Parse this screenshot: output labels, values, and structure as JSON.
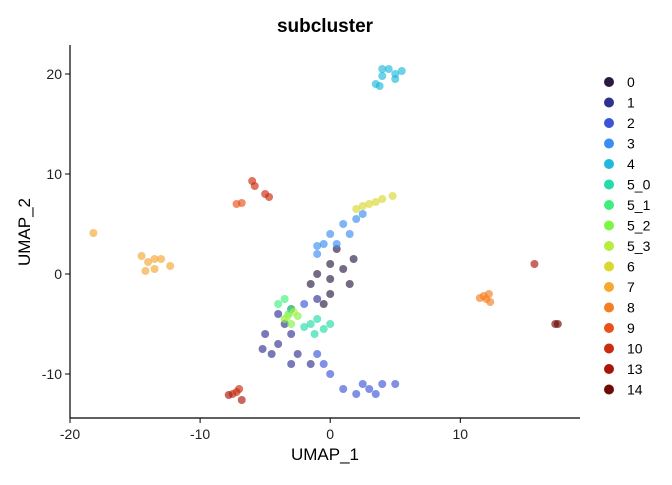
{
  "chart_data": {
    "type": "scatter",
    "title": "subcluster",
    "x_label": "UMAP_1",
    "y_label": "UMAP_2",
    "xlim": [
      -20,
      19.2
    ],
    "ylim": [
      -14.4,
      22.9
    ],
    "xticks": [
      -20,
      -10,
      0,
      10
    ],
    "yticks": [
      -10,
      0,
      10,
      20
    ],
    "grid": false,
    "legend": "right",
    "series": [
      {
        "name": "0",
        "color": "#2b1a40",
        "x": [
          -1,
          0,
          1,
          1.5,
          0,
          -1.5,
          0.5,
          -0.5,
          1.8,
          0
        ],
        "y": [
          0,
          1,
          0.5,
          -1,
          -2,
          -1,
          2.5,
          -3,
          1.5,
          -0.5
        ]
      },
      {
        "name": "1",
        "color": "#30318f",
        "x": [
          -5,
          -4,
          -3,
          -4.5,
          -3.5,
          -2.5,
          -4,
          -1.5,
          -5.2,
          -3,
          -1,
          -3
        ],
        "y": [
          -6,
          -7,
          -6,
          -8,
          -5,
          -8,
          -4,
          -9,
          -7.5,
          -3.5,
          -2.5,
          -9
        ]
      },
      {
        "name": "2",
        "color": "#3a55d8",
        "x": [
          -1,
          0,
          1,
          2,
          3,
          4,
          5,
          -0.5,
          2.5,
          -2,
          3.5
        ],
        "y": [
          -8,
          -10,
          -11.5,
          -12,
          -11.5,
          -11,
          -11,
          -9,
          -11,
          -3,
          -12
        ]
      },
      {
        "name": "3",
        "color": "#3a8ef2",
        "x": [
          -1,
          -0.5,
          0,
          1,
          2,
          1.5,
          0.5,
          2.5,
          -1
        ],
        "y": [
          2,
          3,
          4,
          5,
          5.5,
          4,
          3,
          6,
          2.8
        ]
      },
      {
        "name": "4",
        "color": "#1fb9db",
        "x": [
          3.5,
          4,
          4.5,
          5,
          5.5,
          4,
          3.8,
          5
        ],
        "y": [
          19,
          19.8,
          20.5,
          20,
          20.3,
          20.5,
          18.8,
          19.5
        ]
      },
      {
        "name": "5_0",
        "color": "#22dba8",
        "x": [
          -1.5,
          -0.5,
          -1,
          0,
          -2,
          -1.2
        ],
        "y": [
          -5,
          -5.5,
          -4.5,
          -5,
          -5.3,
          -6
        ]
      },
      {
        "name": "5_1",
        "color": "#3ef07b",
        "x": [
          -4,
          -3.5,
          -3,
          -3.2
        ],
        "y": [
          -3,
          -2.5,
          -3.5,
          -4
        ]
      },
      {
        "name": "5_2",
        "color": "#7ef545",
        "x": [
          -3.5,
          -3,
          -2.5
        ],
        "y": [
          -4.5,
          -5,
          -4.2
        ]
      },
      {
        "name": "5_3",
        "color": "#b3ef3c",
        "x": [
          -2.8,
          -3.3
        ],
        "y": [
          -3.8,
          -4.3
        ]
      },
      {
        "name": "6",
        "color": "#d9d830",
        "x": [
          2,
          3,
          4,
          4.8,
          3.5,
          2.5
        ],
        "y": [
          6.5,
          7,
          7.5,
          7.8,
          7.2,
          6.8
        ]
      },
      {
        "name": "7",
        "color": "#f5a832",
        "x": [
          -18.2,
          -14.5,
          -14,
          -13.5,
          -14.2,
          -13,
          -12.3,
          -13.5
        ],
        "y": [
          4.1,
          1.8,
          1.2,
          0.5,
          0.3,
          1.5,
          0.8,
          1.5
        ]
      },
      {
        "name": "8",
        "color": "#f47e22",
        "x": [
          12,
          12.3,
          11.8,
          12.2,
          11.5
        ],
        "y": [
          -2.5,
          -2.8,
          -2.2,
          -2,
          -2.4
        ]
      },
      {
        "name": "9",
        "color": "#e8521a",
        "x": [
          -7.2,
          -6.8
        ],
        "y": [
          7,
          7.1
        ]
      },
      {
        "name": "10",
        "color": "#c92b0e",
        "x": [
          -6,
          -5.8,
          -5,
          -4.7,
          -7.5,
          -7,
          -7.2
        ],
        "y": [
          9.3,
          8.8,
          8,
          7.7,
          -12,
          -11.5,
          -11.8
        ]
      },
      {
        "name": "13",
        "color": "#a8160a",
        "x": [
          15.7,
          -6.8,
          -7.8
        ],
        "y": [
          1,
          -12.6,
          -12.1
        ]
      },
      {
        "name": "14",
        "color": "#6e0b05",
        "x": [
          17.3,
          17.5
        ],
        "y": [
          -5,
          -5
        ]
      }
    ]
  }
}
